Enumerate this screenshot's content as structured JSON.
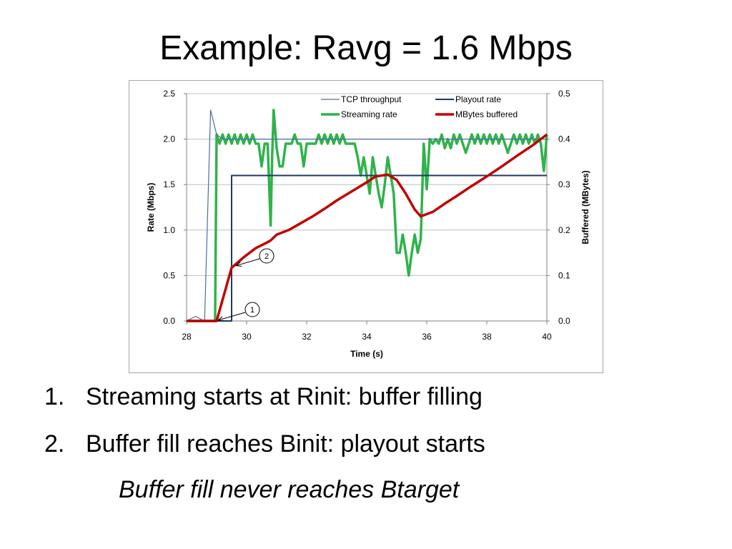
{
  "slide": {
    "title": "Example: Ravg = 1.6 Mbps",
    "bullets": [
      {
        "num": "1.",
        "text": "Streaming starts at Rinit: buffer filling"
      },
      {
        "num": "2.",
        "text": "Buffer fill reaches Binit: playout starts"
      }
    ],
    "note": "Buffer fill never reaches Btarget"
  },
  "chart_data": {
    "type": "line",
    "xlabel": "Time (s)",
    "ylabel": "Rate (Mbps)",
    "y2label": "Buffered (MBytes)",
    "xlim": [
      28,
      40
    ],
    "xticks": [
      "28",
      "30",
      "32",
      "34",
      "36",
      "38",
      "40"
    ],
    "ylim": [
      0,
      2.5
    ],
    "yticks": [
      "0.0",
      "0.5",
      "1.0",
      "1.5",
      "2.0",
      "2.5"
    ],
    "y2lim": [
      0,
      0.5
    ],
    "y2ticks": [
      "0.0",
      "0.1",
      "0.2",
      "0.3",
      "0.4",
      "0.5"
    ],
    "grid": "horizontal",
    "legend_position": "top-right",
    "series": [
      {
        "name": "TCP throughput",
        "axis": "left",
        "color": "#4a6fa5",
        "style": "thin",
        "x": [
          28.0,
          28.3,
          28.6,
          28.8,
          29.0,
          29.2,
          40.0
        ],
        "y": [
          0.0,
          0.05,
          0.0,
          2.32,
          2.05,
          2.0,
          2.0
        ]
      },
      {
        "name": "Playout rate",
        "axis": "left",
        "color": "#1f3864",
        "style": "medium",
        "x": [
          28.0,
          29.5,
          29.5,
          40.0
        ],
        "y": [
          0.0,
          0.0,
          1.6,
          1.6
        ]
      },
      {
        "name": "Streaming rate",
        "axis": "left",
        "color": "#2fb34a",
        "style": "thick",
        "x": [
          28.0,
          28.95,
          29.0,
          29.1,
          29.2,
          29.3,
          29.4,
          29.5,
          29.6,
          29.7,
          29.8,
          29.9,
          30.0,
          30.1,
          30.2,
          30.3,
          30.4,
          30.5,
          30.6,
          30.7,
          30.8,
          30.85,
          30.9,
          31.0,
          31.1,
          31.2,
          31.3,
          31.4,
          31.5,
          31.6,
          31.7,
          31.8,
          31.9,
          32.0,
          32.1,
          32.2,
          32.3,
          32.4,
          32.5,
          32.6,
          32.7,
          32.8,
          32.9,
          33.0,
          33.1,
          33.2,
          33.3,
          33.4,
          33.5,
          33.6,
          33.7,
          33.8,
          33.9,
          34.0,
          34.1,
          34.2,
          34.3,
          34.4,
          34.5,
          34.6,
          34.7,
          34.8,
          34.9,
          35.0,
          35.1,
          35.2,
          35.3,
          35.4,
          35.5,
          35.6,
          35.7,
          35.8,
          35.9,
          36.0,
          36.1,
          36.2,
          36.3,
          36.4,
          36.5,
          36.6,
          36.7,
          36.8,
          36.9,
          37.0,
          37.1,
          37.2,
          37.3,
          37.4,
          37.5,
          37.6,
          37.7,
          37.8,
          37.9,
          38.0,
          38.1,
          38.2,
          38.3,
          38.4,
          38.5,
          38.6,
          38.7,
          38.8,
          38.9,
          39.0,
          39.1,
          39.2,
          39.3,
          39.4,
          39.5,
          39.6,
          39.7,
          39.8,
          39.9,
          40.0
        ],
        "y": [
          0.0,
          0.0,
          2.05,
          1.95,
          2.05,
          1.95,
          2.05,
          1.95,
          2.05,
          1.95,
          2.05,
          1.95,
          2.05,
          1.95,
          2.05,
          1.95,
          1.95,
          1.7,
          1.95,
          1.95,
          1.05,
          1.8,
          2.32,
          1.9,
          1.7,
          1.7,
          1.95,
          1.95,
          1.95,
          2.05,
          1.95,
          1.95,
          1.7,
          1.95,
          1.95,
          1.95,
          1.95,
          2.05,
          1.95,
          2.05,
          1.95,
          2.05,
          1.95,
          2.05,
          1.95,
          2.05,
          1.95,
          1.95,
          1.95,
          1.95,
          1.8,
          1.6,
          1.8,
          1.6,
          1.4,
          1.8,
          1.6,
          1.4,
          1.25,
          1.5,
          1.8,
          1.6,
          1.4,
          0.75,
          0.75,
          0.95,
          0.75,
          0.5,
          0.75,
          0.95,
          0.75,
          0.9,
          1.95,
          1.45,
          2.0,
          1.95,
          2.0,
          1.95,
          2.05,
          1.9,
          2.0,
          1.9,
          2.05,
          1.95,
          2.05,
          1.95,
          1.85,
          1.95,
          2.05,
          1.95,
          2.05,
          1.95,
          2.05,
          1.95,
          2.05,
          1.95,
          2.05,
          1.95,
          2.05,
          1.95,
          1.85,
          1.95,
          2.05,
          1.95,
          2.05,
          1.95,
          2.05,
          1.95,
          2.05,
          1.95,
          2.05,
          1.95,
          1.65,
          2.05
        ]
      },
      {
        "name": "MBytes buffered",
        "axis": "right",
        "color": "#c00000",
        "style": "thick",
        "x": [
          28.0,
          29.0,
          29.5,
          29.9,
          30.3,
          30.6,
          30.8,
          31.0,
          31.4,
          31.8,
          32.2,
          32.6,
          33.0,
          33.5,
          34.0,
          34.3,
          34.7,
          35.0,
          35.3,
          35.6,
          35.8,
          36.0,
          36.2,
          36.6,
          37.0,
          37.5,
          38.0,
          38.5,
          39.0,
          39.5,
          40.0
        ],
        "y": [
          0.0,
          0.0,
          0.117,
          0.14,
          0.16,
          0.17,
          0.177,
          0.19,
          0.2,
          0.215,
          0.23,
          0.247,
          0.265,
          0.285,
          0.305,
          0.318,
          0.322,
          0.31,
          0.28,
          0.245,
          0.23,
          0.235,
          0.24,
          0.258,
          0.275,
          0.297,
          0.318,
          0.34,
          0.363,
          0.385,
          0.41
        ]
      }
    ],
    "annotations": [
      {
        "label": "1",
        "point": [
          29.0,
          0.0
        ]
      },
      {
        "label": "2",
        "point": [
          29.6,
          0.6
        ]
      }
    ]
  }
}
